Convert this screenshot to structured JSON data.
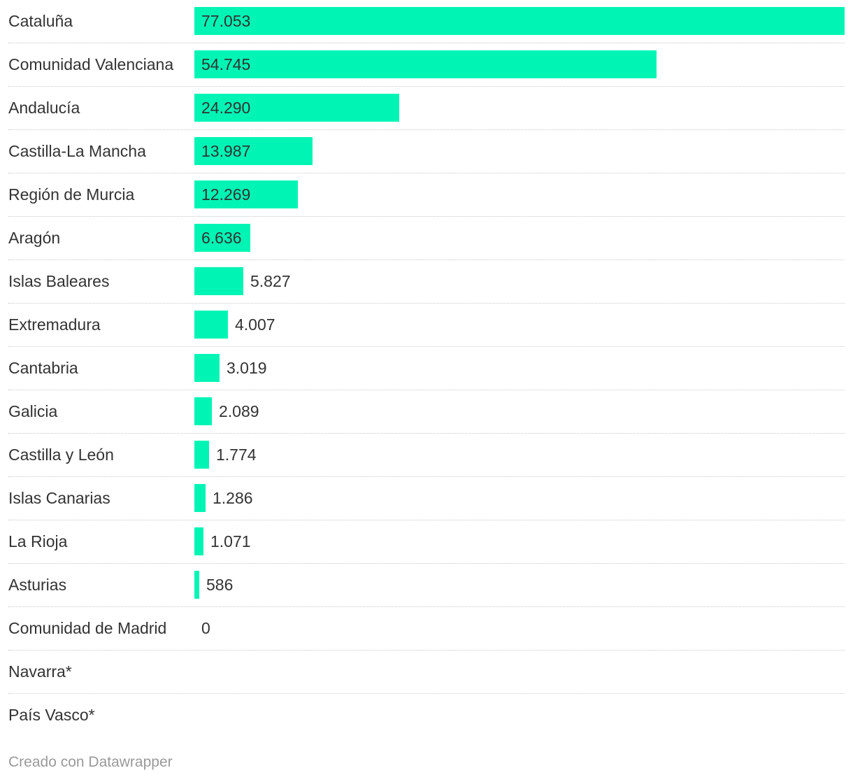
{
  "chart_data": {
    "type": "bar",
    "orientation": "horizontal",
    "categories": [
      "Cataluña",
      "Comunidad Valenciana",
      "Andalucía",
      "Castilla-La Mancha",
      "Región de Murcia",
      "Aragón",
      "Islas Baleares",
      "Extremadura",
      "Cantabria",
      "Galicia",
      "Castilla y León",
      "Islas Canarias",
      "La Rioja",
      "Asturias",
      "Comunidad de Madrid",
      "Navarra*",
      "País Vasco*"
    ],
    "values": [
      77053,
      54745,
      24290,
      13987,
      12269,
      6636,
      5827,
      4007,
      3019,
      2089,
      1774,
      1286,
      1071,
      586,
      0,
      null,
      null
    ],
    "value_labels": [
      "77.053",
      "54.745",
      "24.290",
      "13.987",
      "12.269",
      "6.636",
      "5.827",
      "4.007",
      "3.019",
      "2.089",
      "1.774",
      "1.286",
      "1.071",
      "586",
      "0",
      "",
      ""
    ],
    "xlim": [
      0,
      77053
    ],
    "bar_color": "#00f5b5",
    "grid": false,
    "legend": "none"
  },
  "footer": {
    "credit": "Creado con Datawrapper"
  }
}
